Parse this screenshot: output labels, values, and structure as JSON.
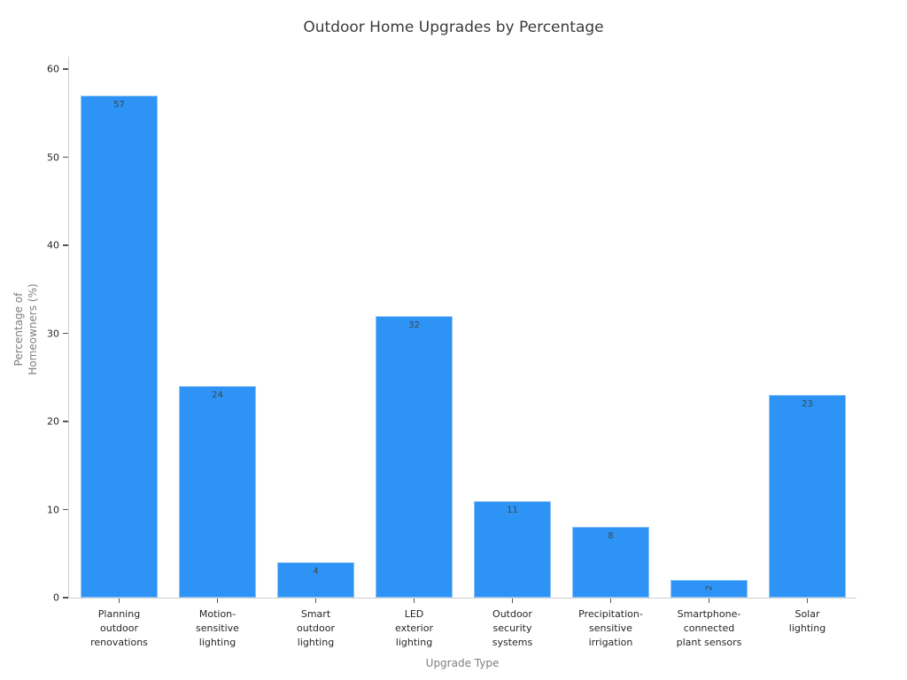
{
  "figure": {
    "background": "#ffffff",
    "colors": {
      "bar_fill": "#2d93f5",
      "bar_edge": "#8fc3f7",
      "spine": "#cfcfcf",
      "tick_mark": "#555555",
      "tick_label": "#262626",
      "title": "#3b3b3b",
      "axis_label": "#7f7f7f",
      "value_label": "#3a4750"
    }
  },
  "chart_data": {
    "type": "bar",
    "title": "Outdoor Home Upgrades by Percentage",
    "xlabel": "Upgrade Type",
    "ylabel": "Percentage of Homeowners (%)",
    "ylabel_lines": [
      "Percentage of",
      "Homeowners (%)"
    ],
    "categories": [
      "Planning outdoor renovations",
      "Motion-sensitive lighting",
      "Smart outdoor lighting",
      "LED exterior lighting",
      "Outdoor security systems",
      "Precipitation-sensitive irrigation",
      "Smartphone-connected plant sensors",
      "Solar lighting"
    ],
    "category_lines": [
      [
        "Planning",
        "outdoor",
        "renovations"
      ],
      [
        "Motion-",
        "sensitive",
        "lighting"
      ],
      [
        "Smart",
        "outdoor",
        "lighting"
      ],
      [
        "LED",
        "exterior",
        "lighting"
      ],
      [
        "Outdoor",
        "security",
        "systems"
      ],
      [
        "Precipitation-",
        "sensitive",
        "irrigation"
      ],
      [
        "Smartphone-",
        "connected",
        "plant sensors"
      ],
      [
        "Solar",
        "lighting"
      ]
    ],
    "values": [
      57,
      24,
      4,
      32,
      11,
      8,
      2,
      23
    ],
    "value_label_rotated": [
      false,
      false,
      false,
      false,
      false,
      false,
      true,
      false
    ],
    "yticks": [
      0,
      10,
      20,
      30,
      40,
      50,
      60
    ],
    "ylim": [
      0,
      60
    ],
    "grid": false,
    "legend": null
  }
}
